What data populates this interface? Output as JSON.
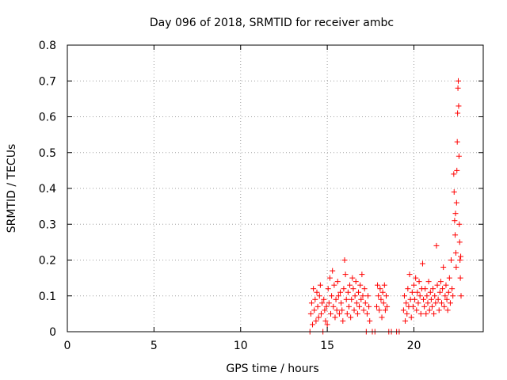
{
  "chart_data": {
    "type": "scatter",
    "title": "Day 096 of 2018, SRMTID for receiver ambc",
    "xlabel": "GPS time / hours",
    "ylabel": "SRMTID / TECUs",
    "xlim": [
      0,
      24
    ],
    "ylim": [
      0,
      0.8
    ],
    "xticks": [
      0,
      5,
      10,
      15,
      20
    ],
    "xtick_labels": [
      "0",
      "5",
      "10",
      "15",
      "20"
    ],
    "yticks": [
      0,
      0.1,
      0.2,
      0.3,
      0.4,
      0.5,
      0.6,
      0.7,
      0.8
    ],
    "ytick_labels": [
      "0",
      "0.1",
      "0.2",
      "0.3",
      "0.4",
      "0.5",
      "0.6",
      "0.7",
      "0.8"
    ],
    "grid": true,
    "marker": "+",
    "series": [
      {
        "name": "SRMTID",
        "color": "#ff0000",
        "points": [
          [
            14.0,
            0.0
          ],
          [
            14.05,
            0.05
          ],
          [
            14.1,
            0.08
          ],
          [
            14.15,
            0.02
          ],
          [
            14.2,
            0.12
          ],
          [
            14.25,
            0.06
          ],
          [
            14.3,
            0.09
          ],
          [
            14.35,
            0.03
          ],
          [
            14.4,
            0.11
          ],
          [
            14.45,
            0.07
          ],
          [
            14.5,
            0.04
          ],
          [
            14.55,
            0.1
          ],
          [
            14.6,
            0.13
          ],
          [
            14.65,
            0.05
          ],
          [
            14.7,
            0.08
          ],
          [
            14.75,
            0.0
          ],
          [
            14.8,
            0.09
          ],
          [
            14.85,
            0.06
          ],
          [
            14.9,
            0.03
          ],
          [
            14.95,
            0.07
          ],
          [
            15.0,
            0.02
          ],
          [
            15.05,
            0.12
          ],
          [
            15.1,
            0.08
          ],
          [
            15.15,
            0.15
          ],
          [
            15.2,
            0.05
          ],
          [
            15.25,
            0.1
          ],
          [
            15.3,
            0.17
          ],
          [
            15.35,
            0.07
          ],
          [
            15.4,
            0.13
          ],
          [
            15.45,
            0.04
          ],
          [
            15.5,
            0.09
          ],
          [
            15.55,
            0.06
          ],
          [
            15.6,
            0.14
          ],
          [
            15.65,
            0.1
          ],
          [
            15.7,
            0.05
          ],
          [
            15.75,
            0.11
          ],
          [
            15.8,
            0.08
          ],
          [
            15.85,
            0.06
          ],
          [
            15.9,
            0.03
          ],
          [
            15.95,
            0.12
          ],
          [
            16.0,
            0.2
          ],
          [
            16.05,
            0.16
          ],
          [
            16.1,
            0.09
          ],
          [
            16.15,
            0.05
          ],
          [
            16.2,
            0.11
          ],
          [
            16.25,
            0.07
          ],
          [
            16.3,
            0.13
          ],
          [
            16.35,
            0.04
          ],
          [
            16.4,
            0.09
          ],
          [
            16.45,
            0.15
          ],
          [
            16.5,
            0.12
          ],
          [
            16.55,
            0.06
          ],
          [
            16.6,
            0.1
          ],
          [
            16.65,
            0.14
          ],
          [
            16.7,
            0.08
          ],
          [
            16.75,
            0.05
          ],
          [
            16.8,
            0.11
          ],
          [
            16.85,
            0.07
          ],
          [
            16.9,
            0.13
          ],
          [
            16.95,
            0.09
          ],
          [
            17.0,
            0.16
          ],
          [
            17.05,
            0.1
          ],
          [
            17.1,
            0.06
          ],
          [
            17.15,
            0.12
          ],
          [
            17.2,
            0.08
          ],
          [
            17.25,
            0.0
          ],
          [
            17.3,
            0.05
          ],
          [
            17.35,
            0.1
          ],
          [
            17.4,
            0.07
          ],
          [
            17.45,
            0.03
          ],
          [
            17.6,
            0.0
          ],
          [
            17.75,
            0.0
          ],
          [
            17.85,
            0.07
          ],
          [
            17.9,
            0.13
          ],
          [
            17.95,
            0.1
          ],
          [
            18.0,
            0.06
          ],
          [
            18.05,
            0.12
          ],
          [
            18.1,
            0.09
          ],
          [
            18.15,
            0.04
          ],
          [
            18.2,
            0.11
          ],
          [
            18.25,
            0.08
          ],
          [
            18.3,
            0.13
          ],
          [
            18.35,
            0.06
          ],
          [
            18.4,
            0.1
          ],
          [
            18.45,
            0.07
          ],
          [
            18.55,
            0.0
          ],
          [
            18.7,
            0.0
          ],
          [
            19.0,
            0.0
          ],
          [
            19.15,
            0.0
          ],
          [
            19.4,
            0.06
          ],
          [
            19.45,
            0.1
          ],
          [
            19.5,
            0.03
          ],
          [
            19.55,
            0.08
          ],
          [
            19.6,
            0.05
          ],
          [
            19.65,
            0.12
          ],
          [
            19.7,
            0.07
          ],
          [
            19.75,
            0.16
          ],
          [
            19.8,
            0.09
          ],
          [
            19.85,
            0.04
          ],
          [
            19.9,
            0.11
          ],
          [
            19.95,
            0.07
          ],
          [
            20.0,
            0.13
          ],
          [
            20.05,
            0.09
          ],
          [
            20.1,
            0.15
          ],
          [
            20.15,
            0.06
          ],
          [
            20.2,
            0.11
          ],
          [
            20.25,
            0.08
          ],
          [
            20.3,
            0.14
          ],
          [
            20.35,
            0.1
          ],
          [
            20.4,
            0.05
          ],
          [
            20.45,
            0.12
          ],
          [
            20.5,
            0.19
          ],
          [
            20.55,
            0.09
          ],
          [
            20.6,
            0.07
          ],
          [
            20.65,
            0.12
          ],
          [
            20.7,
            0.05
          ],
          [
            20.75,
            0.1
          ],
          [
            20.8,
            0.08
          ],
          [
            20.85,
            0.14
          ],
          [
            20.9,
            0.06
          ],
          [
            20.95,
            0.11
          ],
          [
            21.0,
            0.09
          ],
          [
            21.05,
            0.07
          ],
          [
            21.1,
            0.12
          ],
          [
            21.15,
            0.05
          ],
          [
            21.2,
            0.1
          ],
          [
            21.25,
            0.08
          ],
          [
            21.3,
            0.24
          ],
          [
            21.35,
            0.13
          ],
          [
            21.4,
            0.09
          ],
          [
            21.45,
            0.06
          ],
          [
            21.5,
            0.11
          ],
          [
            21.55,
            0.14
          ],
          [
            21.6,
            0.08
          ],
          [
            21.65,
            0.12
          ],
          [
            21.7,
            0.18
          ],
          [
            21.75,
            0.07
          ],
          [
            21.8,
            0.1
          ],
          [
            21.85,
            0.13
          ],
          [
            21.9,
            0.09
          ],
          [
            21.95,
            0.06
          ],
          [
            22.0,
            0.11
          ],
          [
            22.05,
            0.15
          ],
          [
            22.1,
            0.08
          ],
          [
            22.15,
            0.2
          ],
          [
            22.2,
            0.12
          ],
          [
            22.25,
            0.1
          ],
          [
            22.3,
            0.44
          ],
          [
            22.32,
            0.39
          ],
          [
            22.35,
            0.31
          ],
          [
            22.38,
            0.27
          ],
          [
            22.4,
            0.33
          ],
          [
            22.42,
            0.22
          ],
          [
            22.44,
            0.18
          ],
          [
            22.46,
            0.36
          ],
          [
            22.48,
            0.45
          ],
          [
            22.5,
            0.53
          ],
          [
            22.52,
            0.61
          ],
          [
            22.54,
            0.68
          ],
          [
            22.56,
            0.7
          ],
          [
            22.58,
            0.63
          ],
          [
            22.6,
            0.49
          ],
          [
            22.62,
            0.3
          ],
          [
            22.64,
            0.25
          ],
          [
            22.66,
            0.2
          ],
          [
            22.68,
            0.15
          ],
          [
            22.7,
            0.21
          ],
          [
            22.72,
            0.1
          ]
        ]
      }
    ]
  }
}
